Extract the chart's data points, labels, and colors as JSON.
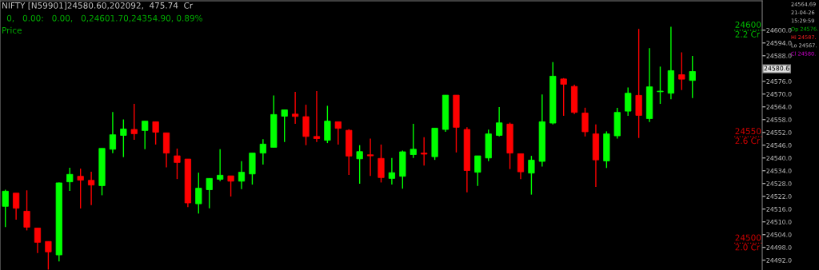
{
  "chart_data": {
    "type": "candlestick",
    "title": "NIFTY [N59901]24580.60,202092,  475.74  Cr",
    "subtitle": "0,   0.00:   0.00,   0,24601.70,24354.90, 0.89%",
    "annotations": [
      "Price",
      "24564.69",
      "21-04-26",
      "15:29:59",
      "Op 24576.",
      "Hi 24587.",
      "Lo 24567.",
      "Cl 24580.",
      "24580.6"
    ],
    "categories": [
      null,
      null,
      null,
      null,
      null,
      null,
      null,
      null,
      null,
      null,
      null,
      null,
      null,
      null,
      null,
      null,
      null,
      null,
      null,
      null,
      null,
      null,
      null,
      null,
      null,
      null,
      null,
      null,
      null,
      null,
      null,
      null,
      null,
      null,
      null,
      null,
      null,
      null,
      null,
      null,
      null,
      null,
      null,
      null,
      null,
      null,
      null,
      null,
      null,
      null,
      null,
      null,
      null,
      null,
      null,
      null,
      null,
      null,
      null,
      null,
      null,
      null,
      null,
      null,
      null,
      null,
      null,
      null,
      null,
      null,
      null
    ],
    "ohlc": [
      [
        24517.3,
        24525.1,
        24507.6,
        24524.4
      ],
      [
        24523.5,
        24523.5,
        24511.0,
        24516.4
      ],
      [
        24515.0,
        24524.8,
        24506.0,
        24507.5
      ],
      [
        24507.1,
        24507.1,
        24495.4,
        24500.4
      ],
      [
        24500.8,
        24500.8,
        24487.6,
        24495.9
      ],
      [
        24494.5,
        24528.5,
        24491.4,
        24528.3
      ],
      [
        24528.8,
        24535.4,
        24524.5,
        24532.3
      ],
      [
        24531.4,
        24535.0,
        24516.3,
        24529.6
      ],
      [
        24529.5,
        24533.5,
        24517.9,
        24527.3
      ],
      [
        24527.0,
        24544.5,
        24522.5,
        24544.5
      ],
      [
        24544.1,
        24561.6,
        24542.3,
        24550.9
      ],
      [
        24550.6,
        24558.1,
        24540.4,
        24553.6
      ],
      [
        24553.4,
        24565.4,
        24548.5,
        24551.4
      ],
      [
        24552.9,
        24557.3,
        24544.1,
        24557.3
      ],
      [
        24557.0,
        24557.0,
        24546.3,
        24552.1
      ],
      [
        24551.8,
        24551.8,
        24535.6,
        24542.3
      ],
      [
        24541.0,
        24544.4,
        24530.1,
        24537.9
      ],
      [
        24539.5,
        24539.5,
        24516.9,
        24518.9
      ],
      [
        24518.5,
        24533.1,
        24513.9,
        24525.8
      ],
      [
        24525.1,
        24530.4,
        24516.4,
        24530.4
      ],
      [
        24530.0,
        24544.1,
        24529.1,
        24531.9
      ],
      [
        24531.6,
        24531.6,
        24521.9,
        24529.1
      ],
      [
        24529.1,
        24538.5,
        24525.4,
        24533.3
      ],
      [
        24532.5,
        24542.3,
        24527.5,
        24542.3
      ],
      [
        24542.3,
        24548.8,
        24536.9,
        24546.5
      ],
      [
        24545.0,
        24569.4,
        24545.0,
        24560.4
      ],
      [
        24559.6,
        24562.6,
        24547.5,
        24562.6
      ],
      [
        24560.6,
        24571.0,
        24556.0,
        24559.5
      ],
      [
        24559.4,
        24565.0,
        24546.0,
        24550.1
      ],
      [
        24550.1,
        24571.4,
        24547.5,
        24549.1
      ],
      [
        24548.3,
        24564.5,
        24547.0,
        24557.3
      ],
      [
        24557.0,
        24557.0,
        24546.3,
        24553.9
      ],
      [
        24553.0,
        24553.5,
        24532.0,
        24540.9
      ],
      [
        24539.6,
        24546.0,
        24527.9,
        24543.0
      ],
      [
        24541.5,
        24549.1,
        24531.6,
        24541.0
      ],
      [
        24539.8,
        24546.3,
        24528.5,
        24530.8
      ],
      [
        24530.4,
        24540.0,
        24527.5,
        24533.1
      ],
      [
        24531.4,
        24543.5,
        24525.6,
        24542.9
      ],
      [
        24541.6,
        24556.0,
        24540.0,
        24544.1
      ],
      [
        24542.3,
        24549.8,
        24536.4,
        24541.8
      ],
      [
        24540.6,
        24554.0,
        24539.1,
        24554.0
      ],
      [
        24553.4,
        24569.5,
        24552.3,
        24569.5
      ],
      [
        24569.5,
        24569.5,
        24542.6,
        24554.4
      ],
      [
        24553.4,
        24554.4,
        24523.9,
        24534.1
      ],
      [
        24533.3,
        24541.0,
        24526.9,
        24541.0
      ],
      [
        24540.0,
        24553.3,
        24538.5,
        24551.3
      ],
      [
        24550.6,
        24563.9,
        24550.1,
        24556.5
      ],
      [
        24555.9,
        24556.6,
        24534.8,
        24542.3
      ],
      [
        24542.0,
        24542.0,
        24530.1,
        24533.5
      ],
      [
        24532.9,
        24541.0,
        24522.8,
        24539.0
      ],
      [
        24538.4,
        24569.8,
        24536.0,
        24557.0
      ],
      [
        24556.4,
        24585.0,
        24555.8,
        24578.4
      ],
      [
        24577.1,
        24577.5,
        24559.8,
        24574.6
      ],
      [
        24573.6,
        24574.4,
        24560.6,
        24561.4
      ],
      [
        24561.1,
        24563.6,
        24550.1,
        24552.3
      ],
      [
        24551.3,
        24555.8,
        24526.4,
        24539.1
      ],
      [
        24538.6,
        24552.5,
        24535.3,
        24551.3
      ],
      [
        24550.4,
        24563.5,
        24549.1,
        24561.4
      ],
      [
        24562.0,
        24573.1,
        24559.8,
        24570.4
      ],
      [
        24569.4,
        24600.6,
        24549.4,
        24560.0
      ],
      [
        24558.5,
        24591.6,
        24556.9,
        24573.4
      ],
      [
        24571.1,
        24582.9,
        24565.4,
        24571.4
      ],
      [
        24570.4,
        24601.6,
        24567.6,
        24581.0
      ],
      [
        24579.1,
        24589.6,
        24571.9,
        24577.0
      ],
      [
        24576.4,
        24587.9,
        24568.1,
        24580.6
      ],
      null,
      null,
      null,
      null,
      null,
      null
    ],
    "colors": [
      "#00ff00",
      "#ff0000",
      "#ff0000",
      "#ff0000",
      "#ff0000",
      "#00ff00",
      "#00ff00",
      "#ff0000",
      "#ff0000",
      "#00ff00",
      "#00ff00",
      "#00ff00",
      "#ff0000",
      "#00ff00",
      "#ff0000",
      "#ff0000",
      "#ff0000",
      "#ff0000",
      "#00ff00",
      "#00ff00",
      "#00ff00",
      "#ff0000",
      "#00ff00",
      "#00ff00",
      "#00ff00",
      "#00ff00",
      "#00ff00",
      "#ff0000",
      "#ff0000",
      "#ff0000",
      "#00ff00",
      "#ff0000",
      "#ff0000",
      "#00ff00",
      "#ff0000",
      "#ff0000",
      "#00ff00",
      "#00ff00",
      "#00ff00",
      "#ff0000",
      "#00ff00",
      "#00ff00",
      "#ff0000",
      "#ff0000",
      "#00ff00",
      "#00ff00",
      "#00ff00",
      "#ff0000",
      "#ff0000",
      "#00ff00",
      "#00ff00",
      "#00ff00",
      "#ff0000",
      "#ff0000",
      "#ff0000",
      "#ff0000",
      "#00ff00",
      "#00ff00",
      "#00ff00",
      "#ff0000",
      "#00ff00",
      "#00ff00",
      "#00ff00",
      "#ff0000",
      "#00ff00",
      null,
      null,
      null,
      null,
      null,
      null
    ],
    "ylim": [
      24487.4,
      24613.8
    ],
    "yticks": [
      {
        "value": 24600,
        "label": "24600.0"
      },
      {
        "value": 24594,
        "label": "24594.0"
      },
      {
        "value": 24588,
        "label": "24588.0"
      },
      {
        "value": 24582,
        "label": null
      },
      {
        "value": 24576,
        "label": "24576.0"
      },
      {
        "value": 24570,
        "label": "24570.0"
      },
      {
        "value": 24564,
        "label": "24564.0"
      },
      {
        "value": 24558,
        "label": "24558.0"
      },
      {
        "value": 24552,
        "label": "24552.0"
      },
      {
        "value": 24546,
        "label": "24546.0"
      },
      {
        "value": 24540,
        "label": "24540.0"
      },
      {
        "value": 24534,
        "label": "24534.0"
      },
      {
        "value": 24528,
        "label": "24528.0"
      },
      {
        "value": 24522,
        "label": "24522.0"
      },
      {
        "value": 24516,
        "label": "24516.0"
      },
      {
        "value": 24510,
        "label": "24510.0"
      },
      {
        "value": 24504,
        "label": "24504.0"
      },
      {
        "value": 24498,
        "label": "24498.0"
      },
      {
        "value": 24492,
        "label": "24492.0"
      }
    ],
    "ref_lines": [
      {
        "axis": "y",
        "value": 24600,
        "label": "24600\n2.2 Cr",
        "color": "#00c000",
        "line_style": "dotted"
      },
      {
        "axis": "y",
        "value": 24550,
        "label": "24550\n2.6 Cr",
        "color": "#d00000",
        "line_style": "dotted"
      },
      {
        "axis": "y",
        "value": 24500,
        "label": "24500\n2.0 Cr",
        "color": "#d00000",
        "line_style": "dotted"
      }
    ],
    "grid": false
  }
}
